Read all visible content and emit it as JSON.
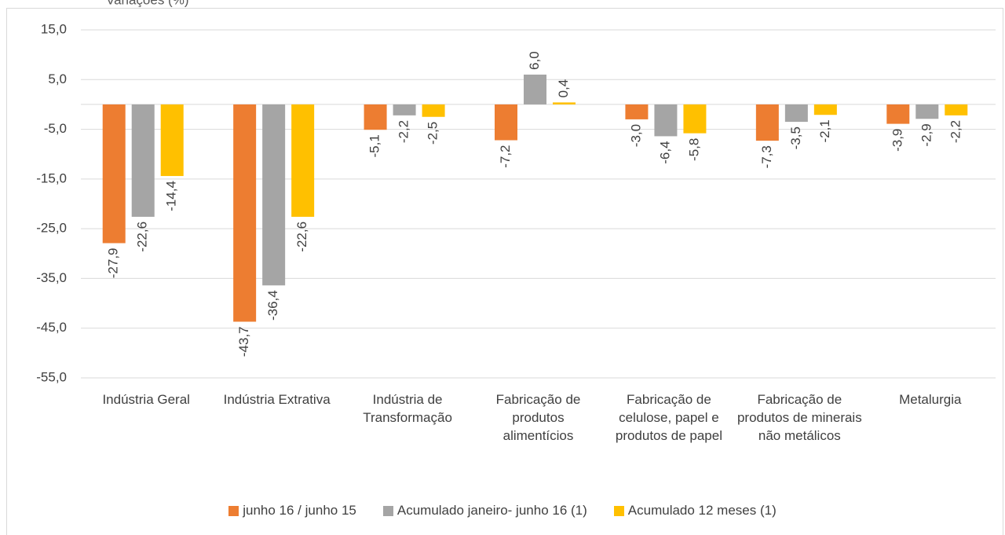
{
  "chart_data": {
    "type": "bar",
    "title": "Variações (%)",
    "categories": [
      "Indústria Geral",
      "Indústria Extrativa",
      "Indústria de Transformação",
      "Fabricação de produtos alimentícios",
      "Fabricação de celulose, papel e produtos de papel",
      "Fabricação de produtos de minerais não metálicos",
      "Metalurgia"
    ],
    "series": [
      {
        "name": "junho 16 / junho 15",
        "color": "#ed7d31",
        "values": [
          -27.9,
          -43.7,
          -5.1,
          -7.2,
          -3.0,
          -7.3,
          -3.9
        ],
        "value_labels": [
          "-27,9",
          "-43,7",
          "-5,1",
          "-7,2",
          "-3,0",
          "-7,3",
          "-3,9"
        ]
      },
      {
        "name": "Acumulado janeiro- junho 16 (1)",
        "color": "#a5a5a5",
        "values": [
          -22.6,
          -36.4,
          -2.2,
          6.0,
          -6.4,
          -3.5,
          -2.9
        ],
        "value_labels": [
          "-22,6",
          "-36,4",
          "-2,2",
          "6,0",
          "-6,4",
          "-3,5",
          "-2,9"
        ]
      },
      {
        "name": "Acumulado 12 meses (1)",
        "color": "#ffc000",
        "values": [
          -14.4,
          -22.6,
          -2.5,
          0.4,
          -5.8,
          -2.1,
          -2.2
        ],
        "value_labels": [
          "-14,4",
          "-22,6",
          "-2,5",
          "0,4",
          "-5,8",
          "-2,1",
          "-2,2"
        ]
      }
    ],
    "ylim": [
      -55,
      15
    ],
    "yticks": [
      {
        "value": -55,
        "label": "-55,0"
      },
      {
        "value": -45,
        "label": "-45,0"
      },
      {
        "value": -35,
        "label": "-35,0"
      },
      {
        "value": -25,
        "label": "-25,0"
      },
      {
        "value": -15,
        "label": "-15,0"
      },
      {
        "value": -5,
        "label": "-5,0"
      },
      {
        "value": 5,
        "label": "5,0"
      },
      {
        "value": 15,
        "label": "15,0"
      }
    ],
    "grid": true,
    "legend": "bottom"
  }
}
